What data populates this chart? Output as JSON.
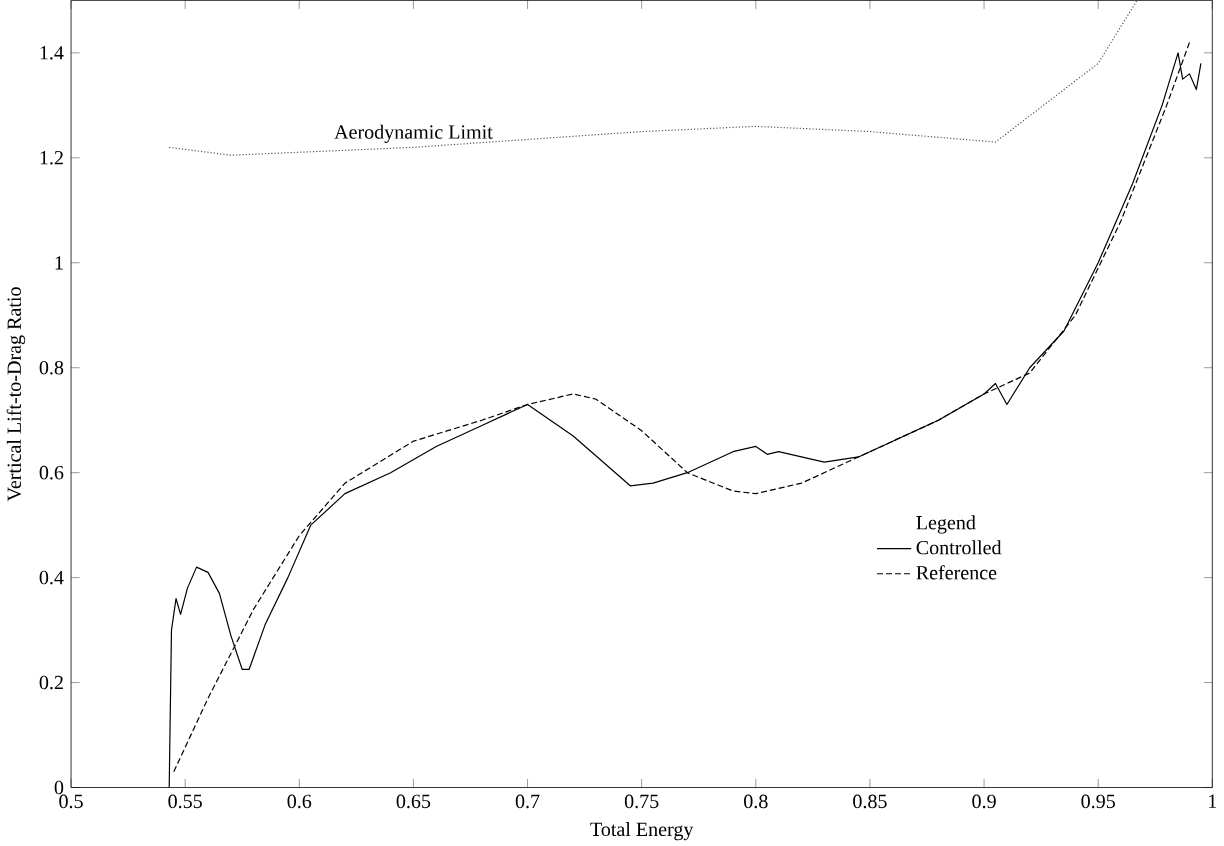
{
  "chart_data": {
    "type": "line",
    "xlabel": "Total Energy",
    "ylabel": "Vertical Lift-to-Drag Ratio",
    "legend_title": "Legend",
    "legend": "right",
    "grid": false,
    "marker": "none",
    "xlim": [
      0.5,
      1
    ],
    "ylim": [
      0,
      1.5
    ],
    "xticks": [
      0.5,
      0.55,
      0.6,
      0.65,
      0.7,
      0.75,
      0.8,
      0.85,
      0.9,
      0.95,
      1
    ],
    "yticks": [
      0,
      0.2,
      0.4,
      0.6,
      0.8,
      1,
      1.2,
      1.4
    ],
    "annotations": [
      {
        "text": "Aerodynamic Limit",
        "x": 0.65,
        "y": 1.22
      }
    ],
    "series": [
      {
        "name": "Controlled",
        "color": "#000000",
        "line_style": "solid",
        "x": [
          0.543,
          0.544,
          0.546,
          0.548,
          0.551,
          0.555,
          0.56,
          0.565,
          0.57,
          0.575,
          0.578,
          0.585,
          0.595,
          0.605,
          0.62,
          0.64,
          0.66,
          0.68,
          0.7,
          0.72,
          0.745,
          0.755,
          0.77,
          0.79,
          0.8,
          0.805,
          0.81,
          0.83,
          0.845,
          0.86,
          0.88,
          0.9,
          0.905,
          0.91,
          0.92,
          0.935,
          0.95,
          0.965,
          0.978,
          0.985,
          0.987,
          0.99,
          0.993,
          0.995
        ],
        "values": [
          0,
          0.3,
          0.36,
          0.33,
          0.38,
          0.42,
          0.41,
          0.37,
          0.29,
          0.225,
          0.225,
          0.31,
          0.4,
          0.5,
          0.56,
          0.6,
          0.65,
          0.69,
          0.73,
          0.67,
          0.575,
          0.58,
          0.6,
          0.64,
          0.65,
          0.635,
          0.64,
          0.62,
          0.63,
          0.66,
          0.7,
          0.75,
          0.77,
          0.73,
          0.8,
          0.87,
          1.0,
          1.15,
          1.3,
          1.4,
          1.35,
          1.36,
          1.33,
          1.38
        ]
      },
      {
        "name": "Reference",
        "color": "#000000",
        "line_style": "dashed",
        "x": [
          0.545,
          0.56,
          0.58,
          0.6,
          0.62,
          0.65,
          0.68,
          0.7,
          0.72,
          0.73,
          0.75,
          0.77,
          0.79,
          0.8,
          0.82,
          0.85,
          0.88,
          0.9,
          0.92,
          0.94,
          0.96,
          0.98,
          0.99
        ],
        "values": [
          0.03,
          0.17,
          0.34,
          0.48,
          0.58,
          0.66,
          0.7,
          0.73,
          0.75,
          0.74,
          0.68,
          0.6,
          0.565,
          0.56,
          0.58,
          0.64,
          0.7,
          0.75,
          0.79,
          0.9,
          1.08,
          1.3,
          1.42
        ]
      },
      {
        "color": "#555555",
        "line_style": "dotted",
        "x": [
          0.543,
          0.57,
          0.65,
          0.75,
          0.8,
          0.85,
          0.905,
          0.95,
          0.967
        ],
        "values": [
          1.22,
          1.205,
          1.22,
          1.25,
          1.26,
          1.25,
          1.23,
          1.38,
          1.5
        ]
      }
    ]
  }
}
